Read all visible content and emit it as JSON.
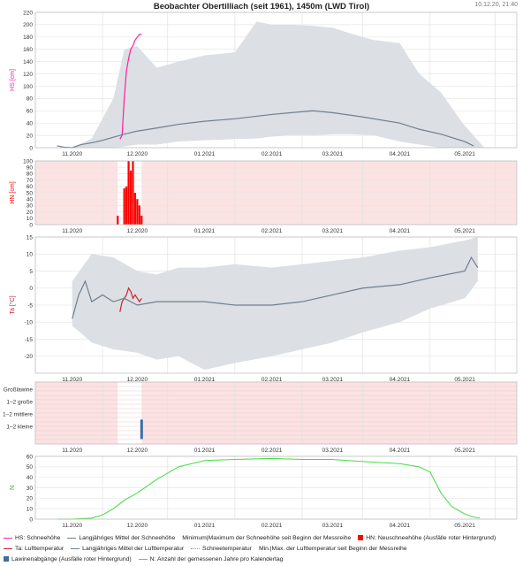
{
  "header": {
    "title": "Beobachter Obertilliach (seit 1961), 1450m (LWD Tirol)",
    "timestamp": "10.12.20, 21:40"
  },
  "colors": {
    "hs": "#ff1fa0",
    "band": "#dcdfe3",
    "mean": "#6f7f8f",
    "hn": "#ff0000",
    "ta": "#cc2233",
    "nodata_bg": "#fbe3e3",
    "avalanche": "#3a6ea5",
    "count": "#44dd44"
  },
  "x_ticks": [
    "11.2020",
    "12.2020",
    "01.2021",
    "02.2021",
    "03.2021",
    "04.2021",
    "05.2021"
  ],
  "chart_data": [
    {
      "type": "area",
      "ylabel": "HS [cm]",
      "ylim": [
        0,
        220
      ],
      "yticks": [
        0,
        20,
        40,
        60,
        80,
        100,
        120,
        140,
        160,
        180,
        200,
        220
      ],
      "grid": true,
      "series": [
        {
          "name": "HS: Schneehöhe",
          "x": [
            "2020-11-23",
            "2020-11-24",
            "2020-11-25",
            "2020-11-26",
            "2020-11-27",
            "2020-11-28",
            "2020-11-29",
            "2020-11-30",
            "2020-12-01",
            "2020-12-02",
            "2020-12-03"
          ],
          "values": [
            14,
            20,
            80,
            125,
            145,
            160,
            166,
            175,
            180,
            184,
            184
          ]
        },
        {
          "name": "Langjähriges Mittel der Schneehöhe",
          "x": [
            "2020-10-25",
            "2020-10-28",
            "2020-11-01",
            "2020-11-05",
            "2020-11-10",
            "2020-11-15",
            "2020-11-20",
            "2020-11-25",
            "2020-12-01",
            "2020-12-10",
            "2020-12-20",
            "2021-01-01",
            "2021-01-15",
            "2021-02-01",
            "2021-02-10",
            "2021-02-20",
            "2021-03-01",
            "2021-03-15",
            "2021-04-01",
            "2021-04-10",
            "2021-04-20",
            "2021-05-01",
            "2021-05-05"
          ],
          "values": [
            3,
            1,
            0,
            5,
            8,
            12,
            17,
            22,
            27,
            32,
            38,
            43,
            47,
            54,
            57,
            60,
            57,
            50,
            40,
            30,
            22,
            10,
            3
          ]
        },
        {
          "name": "Minimum|Maximum der Schneehöhe seit Beginn der Messreihe",
          "x": [
            "2020-11-01",
            "2020-11-10",
            "2020-11-20",
            "2020-11-25",
            "2020-12-01",
            "2020-12-10",
            "2020-12-20",
            "2021-01-01",
            "2021-01-15",
            "2021-01-25",
            "2021-02-01",
            "2021-02-10",
            "2021-02-20",
            "2021-03-01",
            "2021-03-10",
            "2021-03-20",
            "2021-04-01",
            "2021-04-10",
            "2021-04-20",
            "2021-04-30",
            "2021-05-05",
            "2021-05-10"
          ],
          "max": [
            0,
            15,
            80,
            160,
            165,
            130,
            140,
            150,
            155,
            205,
            200,
            200,
            198,
            195,
            185,
            175,
            170,
            120,
            90,
            40,
            20,
            0
          ],
          "min": [
            0,
            0,
            0,
            2,
            5,
            5,
            10,
            12,
            14,
            15,
            18,
            20,
            20,
            22,
            22,
            20,
            10,
            5,
            0,
            0,
            0,
            0
          ]
        }
      ]
    },
    {
      "type": "bar",
      "ylabel": "HN [cm]",
      "ylim": [
        0,
        100
      ],
      "yticks": [
        0,
        10,
        20,
        30,
        40,
        50,
        60,
        70,
        80,
        90,
        100
      ],
      "grid": true,
      "series": [
        {
          "name": "HN: Neuschneehöhe (Ausfälle roter Hintergrund)",
          "x": [
            "2020-11-22",
            "2020-11-25",
            "2020-11-26",
            "2020-11-27",
            "2020-11-28",
            "2020-11-29",
            "2020-11-30",
            "2020-12-01",
            "2020-12-02",
            "2020-12-03"
          ],
          "values": [
            14,
            57,
            60,
            100,
            85,
            100,
            50,
            40,
            30,
            14
          ]
        }
      ]
    },
    {
      "type": "line",
      "ylabel": "Ta [°C]",
      "ylim": [
        -25,
        15
      ],
      "yticks": [
        -20,
        -15,
        -10,
        -5,
        0,
        5,
        10,
        15
      ],
      "grid": true,
      "series": [
        {
          "name": "Ta: Lufttemperatur",
          "x": [
            "2020-11-23",
            "2020-11-24",
            "2020-11-25",
            "2020-11-26",
            "2020-11-27",
            "2020-11-28",
            "2020-11-29",
            "2020-11-30",
            "2020-12-01",
            "2020-12-02",
            "2020-12-03"
          ],
          "values": [
            -7,
            -4,
            -3,
            -2,
            0,
            -1,
            -3,
            -2,
            -3,
            -4,
            -3
          ]
        },
        {
          "name": "Langjähriges Mittel der Lufttemperatur",
          "x": [
            "2020-11-01",
            "2020-11-04",
            "2020-11-07",
            "2020-11-10",
            "2020-11-15",
            "2020-11-20",
            "2020-11-25",
            "2020-12-01",
            "2020-12-10",
            "2020-12-20",
            "2021-01-01",
            "2021-01-15",
            "2021-02-01",
            "2021-02-15",
            "2021-03-01",
            "2021-03-15",
            "2021-04-01",
            "2021-04-15",
            "2021-05-01",
            "2021-05-04",
            "2021-05-07"
          ],
          "values": [
            -9,
            -2,
            2,
            -4,
            -2,
            -4,
            -3,
            -5,
            -4,
            -4,
            -4,
            -5,
            -5,
            -4,
            -2,
            0,
            1,
            3,
            5,
            9,
            6
          ]
        },
        {
          "name": "Min.|Max. der Lufttemperatur seit Beginn der Messreihe",
          "x": [
            "2020-11-01",
            "2020-11-10",
            "2020-11-20",
            "2020-12-01",
            "2020-12-10",
            "2020-12-20",
            "2021-01-01",
            "2021-01-15",
            "2021-02-01",
            "2021-02-15",
            "2021-03-01",
            "2021-03-15",
            "2021-04-01",
            "2021-04-15",
            "2021-05-01",
            "2021-05-07"
          ],
          "max": [
            2,
            10,
            9,
            5,
            4,
            6,
            6,
            7,
            6,
            7,
            8,
            9,
            11,
            12,
            14,
            15
          ],
          "min": [
            -11,
            -16,
            -18,
            -19,
            -21,
            -20,
            -24,
            -22,
            -20,
            -18,
            -16,
            -13,
            -10,
            -6,
            -3,
            2
          ]
        }
      ]
    },
    {
      "type": "bar",
      "ylabel": "",
      "categories": [
        "Großlawine",
        "1–2 große",
        "1–2 mittlere",
        "1–2 kleine"
      ],
      "series": [
        {
          "name": "Lawinenabgänge (Ausfälle roter Hintergrund)",
          "x": [
            "2020-12-03"
          ],
          "values": [
            "1–2 kleine"
          ]
        }
      ]
    },
    {
      "type": "line",
      "ylabel": "N",
      "ylim": [
        0,
        60
      ],
      "yticks": [
        0,
        10,
        20,
        30,
        40,
        50,
        60
      ],
      "grid": true,
      "series": [
        {
          "name": "N: Anzahl der gemessenen Jahre pro Kalendertag",
          "x": [
            "2020-10-25",
            "2020-11-01",
            "2020-11-10",
            "2020-11-15",
            "2020-11-20",
            "2020-11-25",
            "2020-12-01",
            "2020-12-10",
            "2020-12-20",
            "2021-01-01",
            "2021-01-15",
            "2021-02-01",
            "2021-02-15",
            "2021-03-01",
            "2021-03-15",
            "2021-04-01",
            "2021-04-10",
            "2021-04-15",
            "2021-04-20",
            "2021-04-25",
            "2021-05-01",
            "2021-05-05",
            "2021-05-08"
          ],
          "values": [
            0,
            0,
            1,
            4,
            10,
            18,
            25,
            38,
            50,
            56,
            57,
            58,
            57,
            57,
            55,
            53,
            50,
            45,
            25,
            12,
            5,
            2,
            1
          ]
        }
      ]
    }
  ],
  "legend": {
    "items": [
      {
        "label": "HS: Schneehöhe",
        "swatch": "line",
        "color": "#ff1fa0"
      },
      {
        "label": "Langjähriges Mittel der Schneehöhe",
        "swatch": "line",
        "color": "#6f7f8f"
      },
      {
        "label": "Minimum|Maximum der Schneehöhe seit Beginn der Messreihe",
        "swatch": "none",
        "color": ""
      },
      {
        "label": "HN: Neuschneehöhe (Ausfälle roter Hintergrund)",
        "swatch": "square",
        "color": "#ff0000"
      },
      {
        "label": "Ta: Lufttemperatur",
        "swatch": "line",
        "color": "#cc2233"
      },
      {
        "label": "Langjähriges Mittel der Lufttemperatur",
        "swatch": "line",
        "color": "#6f7f8f"
      },
      {
        "label": "Schneetemperatur",
        "swatch": "dotted",
        "color": "#999999"
      },
      {
        "label": "Min.|Max. der Lufttemperatur seit Beginn der Messreihe",
        "swatch": "none",
        "color": ""
      },
      {
        "label": "Lawinenabgänge (Ausfälle roter Hintergrund)",
        "swatch": "square",
        "color": "#3a6ea5"
      },
      {
        "label": "N: Anzahl der gemessenen Jahre pro Kalendertag",
        "swatch": "line",
        "color": "#44dd44"
      }
    ]
  }
}
